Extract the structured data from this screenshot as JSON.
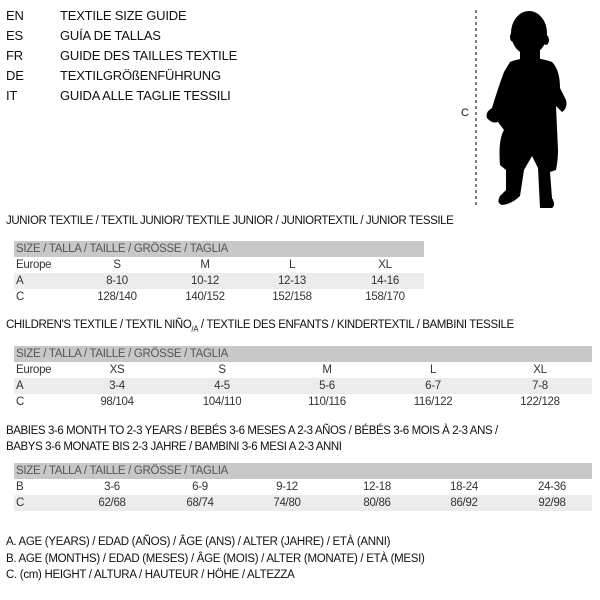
{
  "languages": [
    {
      "code": "EN",
      "text": "TEXTILE SIZE GUIDE"
    },
    {
      "code": "ES",
      "text": "GUÍA DE TALLAS"
    },
    {
      "code": "FR",
      "text": "GUIDE DES TAILLES TEXTILE"
    },
    {
      "code": "DE",
      "text": "TEXTILGRÖßENFÜHRUNG"
    },
    {
      "code": "IT",
      "text": "GUIDA ALLE TAGLIE TESSILI"
    }
  ],
  "figure": {
    "measure_label": "C",
    "icon": "baby-silhouette"
  },
  "junior": {
    "title": "JUNIOR TEXTILE / TEXTIL JUNIOR/ TEXTILE JUNIOR / JUNIORTEXTIL / JUNIOR TESSILE",
    "header": "SIZE / TALLA / TAILLE / GRÖSSE / TAGLIA",
    "rows": [
      {
        "label": "Europe",
        "values": [
          "S",
          "M",
          "L",
          "XL"
        ]
      },
      {
        "label": "A",
        "values": [
          "8-10",
          "10-12",
          "12-13",
          "14-16"
        ]
      },
      {
        "label": "C",
        "values": [
          "128/140",
          "140/152",
          "152/158",
          "158/170"
        ]
      }
    ]
  },
  "children": {
    "title_main": "CHILDREN'S TEXTILE / TEXTIL NIÑO",
    "title_sub": "/A",
    "title_rest": " / TEXTILE DES ENFANTS / KINDERTEXTIL / BAMBINI TESSILE",
    "header": "SIZE / TALLA / TAILLE / GRÖSSE / TAGLIA",
    "rows": [
      {
        "label": "Europe",
        "values": [
          "XS",
          "S",
          "M",
          "L",
          "XL"
        ]
      },
      {
        "label": "A",
        "values": [
          "3-4",
          "4-5",
          "5-6",
          "6-7",
          "7-8"
        ]
      },
      {
        "label": "C",
        "values": [
          "98/104",
          "104/110",
          "110/116",
          "116/122",
          "122/128"
        ]
      }
    ]
  },
  "babies": {
    "title_line1": "BABIES 3-6 MONTH TO 2-3 YEARS / BEBÉS 3-6 MESES A 2-3 AÑOS / BÉBÉS 3-6 MOIS À 2-3 ANS /",
    "title_line2": "BABYS 3-6 MONATE BIS 2-3 JAHRE / BAMBINI 3-6 MESI A 2-3 ANNI",
    "header": "SIZE / TALLA / TAILLE / GRÖSSE / TAGLIA",
    "rows": [
      {
        "label": "B",
        "values": [
          "3-6",
          "6-9",
          "9-12",
          "12-18",
          "18-24",
          "24-36"
        ]
      },
      {
        "label": "C",
        "values": [
          "62/68",
          "68/74",
          "74/80",
          "80/86",
          "86/92",
          "92/98"
        ]
      }
    ]
  },
  "legend": [
    "A. AGE (YEARS) / EDAD (AÑOS) / ÂGE (ANS) / ALTER (JAHRE) / ETÀ (ANNI)",
    "B. AGE (MONTHS) / EDAD (MESES) / ÂGE (MOIS) / ALTER (MONATE) / ETÀ (MESI)",
    "C. (cm) HEIGHT / ALTURA / HAUTEUR / HÖHE / ALTEZZA"
  ]
}
